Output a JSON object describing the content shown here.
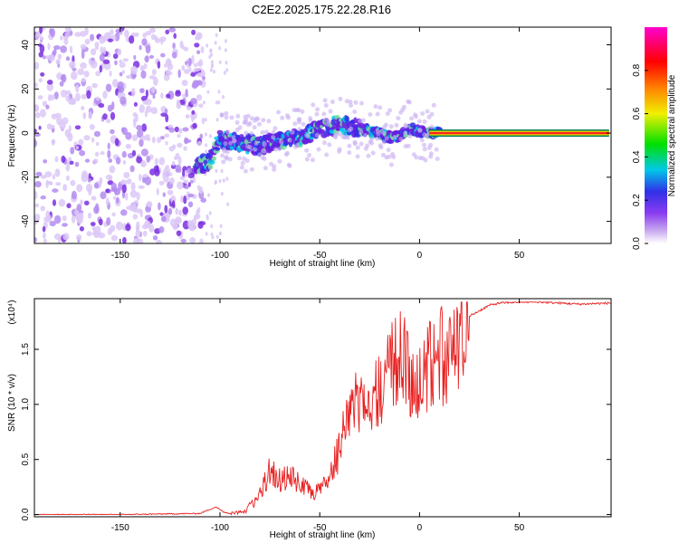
{
  "title": "C2E2.2025.175.22.28.R16",
  "chart_data": [
    {
      "type": "heatmap",
      "xlabel": "Height of straight line (km)",
      "ylabel": "Frequency (Hz)",
      "xlim": [
        -193,
        96
      ],
      "ylim": [
        -50,
        48
      ],
      "xticks": [
        -150,
        -100,
        -50,
        0,
        50
      ],
      "yticks": [
        -40,
        -20,
        0,
        20,
        40
      ],
      "colorbar": {
        "label": "Normalized spectral amplitude",
        "range": [
          0,
          1
        ],
        "ticks": [
          "0.0",
          "0.2",
          "0.4",
          "0.6",
          "0.8"
        ],
        "colors": [
          "#ffffff",
          "#c8a8f0",
          "#8a3cf0",
          "#3030e8",
          "#00c8e8",
          "#00e000",
          "#f0f000",
          "#ff8000",
          "#ff0000",
          "#ff00d0"
        ]
      },
      "ridge": {
        "x": [
          -112,
          -105,
          -100,
          -90,
          -80,
          -70,
          -60,
          -50,
          -40,
          -30,
          -25,
          -20,
          -15,
          -10,
          -5,
          0,
          5,
          10,
          95
        ],
        "y": [
          -15,
          -13,
          -3,
          -4,
          -6,
          -3,
          -2,
          2,
          4,
          2,
          1,
          0,
          -2,
          -2,
          2,
          1,
          0,
          0,
          0
        ]
      }
    },
    {
      "type": "line",
      "xlabel": "Height of straight line (km)",
      "ylabel": "SNR (10 * v/v)",
      "y_multiplier": "(x10⁴)",
      "xlim": [
        -193,
        96
      ],
      "ylim": [
        -0.02,
        1.96
      ],
      "xticks": [
        -150,
        -100,
        -50,
        0,
        50
      ],
      "yticks": [
        "0.0",
        "0.5",
        "1.0",
        "1.5"
      ],
      "series": [
        {
          "color": "#e82020",
          "x": [
            -193,
            -150,
            -110,
            -102,
            -98,
            -95,
            -88,
            -80,
            -75,
            -70,
            -65,
            -60,
            -55,
            -50,
            -45,
            -40,
            -35,
            -30,
            -27,
            -22,
            -18,
            -15,
            -12,
            -8,
            -5,
            -2,
            0,
            3,
            6,
            10,
            15,
            20,
            25,
            30,
            35,
            40,
            50,
            60,
            70,
            80,
            96
          ],
          "y": [
            0.0,
            0.0,
            0.01,
            0.07,
            0.02,
            0.01,
            0.03,
            0.2,
            0.45,
            0.35,
            0.4,
            0.3,
            0.25,
            0.25,
            0.35,
            0.7,
            1.05,
            1.15,
            1.3,
            1.25,
            1.35,
            1.45,
            1.55,
            1.6,
            1.45,
            1.4,
            1.45,
            1.5,
            1.55,
            1.6,
            1.65,
            1.75,
            1.8,
            1.85,
            1.9,
            1.92,
            1.93,
            1.93,
            1.92,
            1.91,
            1.92
          ]
        }
      ]
    }
  ]
}
